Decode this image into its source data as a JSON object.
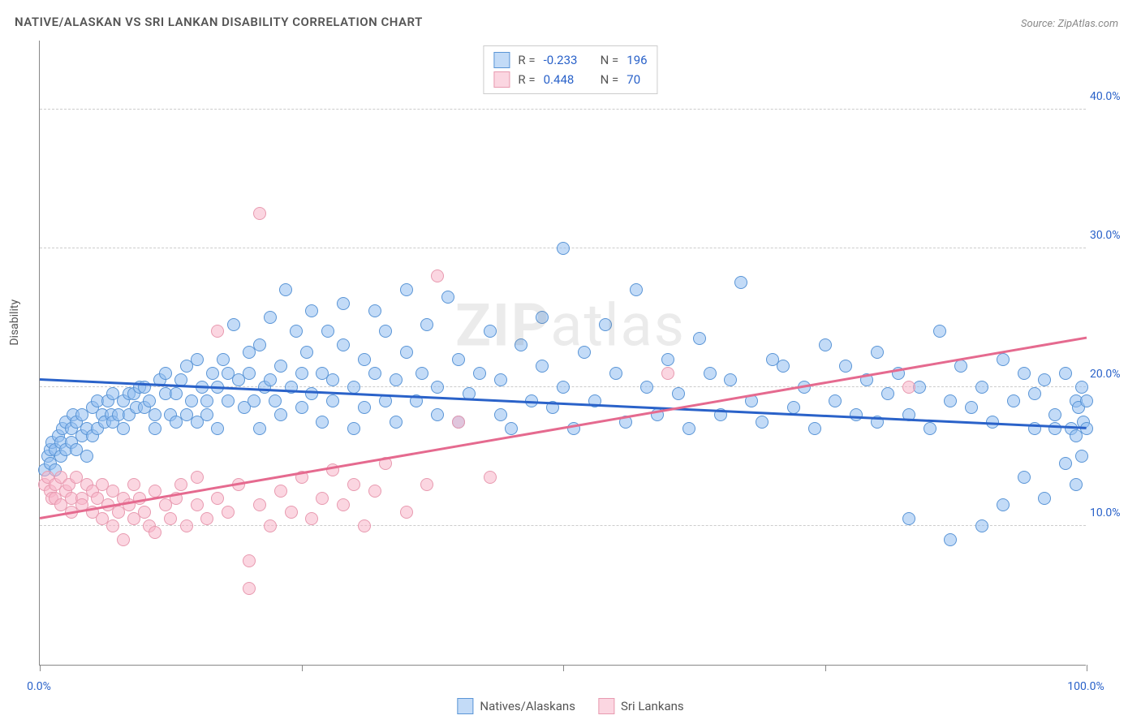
{
  "title": "NATIVE/ALASKAN VS SRI LANKAN DISABILITY CORRELATION CHART",
  "source_label": "Source: ",
  "source_name": "ZipAtlas.com",
  "watermark": {
    "bold": "ZIP",
    "rest": "atlas"
  },
  "chart": {
    "type": "scatter",
    "background_color": "#ffffff",
    "grid_color": "#cccccc",
    "axis_color": "#888888",
    "text_color": "#555555",
    "ytick_color": "#2a62c9",
    "xtick_color": "#2a62c9",
    "yaxis_label": "Disability",
    "xlim": [
      0,
      100
    ],
    "ylim": [
      0,
      45
    ],
    "yticks": [
      10,
      20,
      30,
      40
    ],
    "ytick_labels": [
      "10.0%",
      "20.0%",
      "30.0%",
      "40.0%"
    ],
    "xticks": [
      0,
      25,
      50,
      75,
      100
    ],
    "xtick_labels_visible": {
      "0": "0.0%",
      "100": "100.0%"
    },
    "marker_radius": 8,
    "marker_border_width": 1.2,
    "series": [
      {
        "name": "Natives/Alaskans",
        "fill": "rgba(145,190,240,0.55)",
        "stroke": "#5a95d6",
        "trend_color": "#2a62c9",
        "trend": {
          "x1": 0,
          "y1": 20.5,
          "x2": 100,
          "y2": 17.0
        },
        "R_label": "R = ",
        "R": "-0.233",
        "N_label": "N = ",
        "N": "196",
        "points": [
          [
            0.5,
            14
          ],
          [
            0.8,
            15
          ],
          [
            1,
            15.5
          ],
          [
            1,
            14.5
          ],
          [
            1.2,
            16
          ],
          [
            1.5,
            14
          ],
          [
            1.5,
            15.5
          ],
          [
            1.8,
            16.5
          ],
          [
            2,
            15
          ],
          [
            2,
            16
          ],
          [
            2.2,
            17
          ],
          [
            2.5,
            15.5
          ],
          [
            2.5,
            17.5
          ],
          [
            3,
            17
          ],
          [
            3,
            16
          ],
          [
            3.2,
            18
          ],
          [
            3.5,
            15.5
          ],
          [
            3.5,
            17.5
          ],
          [
            4,
            16.5
          ],
          [
            4,
            18
          ],
          [
            4.5,
            17
          ],
          [
            4.5,
            15
          ],
          [
            5,
            18.5
          ],
          [
            5,
            16.5
          ],
          [
            5.5,
            17
          ],
          [
            5.5,
            19
          ],
          [
            6,
            18
          ],
          [
            6.2,
            17.5
          ],
          [
            6.5,
            19
          ],
          [
            6.8,
            18
          ],
          [
            7,
            17.5
          ],
          [
            7,
            19.5
          ],
          [
            7.5,
            18
          ],
          [
            8,
            19
          ],
          [
            8,
            17
          ],
          [
            8.5,
            19.5
          ],
          [
            8.5,
            18
          ],
          [
            9,
            19.5
          ],
          [
            9.2,
            18.5
          ],
          [
            9.5,
            20
          ],
          [
            10,
            18.5
          ],
          [
            10,
            20
          ],
          [
            10.5,
            19
          ],
          [
            11,
            18
          ],
          [
            11,
            17
          ],
          [
            11.5,
            20.5
          ],
          [
            12,
            19.5
          ],
          [
            12,
            21
          ],
          [
            12.5,
            18
          ],
          [
            13,
            17.5
          ],
          [
            13,
            19.5
          ],
          [
            13.5,
            20.5
          ],
          [
            14,
            18
          ],
          [
            14,
            21.5
          ],
          [
            14.5,
            19
          ],
          [
            15,
            17.5
          ],
          [
            15,
            22
          ],
          [
            15.5,
            20
          ],
          [
            16,
            19
          ],
          [
            16,
            18
          ],
          [
            16.5,
            21
          ],
          [
            17,
            17
          ],
          [
            17,
            20
          ],
          [
            17.5,
            22
          ],
          [
            18,
            19
          ],
          [
            18,
            21
          ],
          [
            18.5,
            24.5
          ],
          [
            19,
            20.5
          ],
          [
            19.5,
            18.5
          ],
          [
            20,
            22.5
          ],
          [
            20,
            21
          ],
          [
            20.5,
            19
          ],
          [
            21,
            17
          ],
          [
            21,
            23
          ],
          [
            21.5,
            20
          ],
          [
            22,
            25
          ],
          [
            22,
            20.5
          ],
          [
            22.5,
            19
          ],
          [
            23,
            18
          ],
          [
            23,
            21.5
          ],
          [
            23.5,
            27
          ],
          [
            24,
            20
          ],
          [
            24.5,
            24
          ],
          [
            25,
            18.5
          ],
          [
            25,
            21
          ],
          [
            25.5,
            22.5
          ],
          [
            26,
            19.5
          ],
          [
            26,
            25.5
          ],
          [
            27,
            17.5
          ],
          [
            27,
            21
          ],
          [
            27.5,
            24
          ],
          [
            28,
            19
          ],
          [
            28,
            20.5
          ],
          [
            29,
            26
          ],
          [
            29,
            23
          ],
          [
            30,
            17
          ],
          [
            30,
            20
          ],
          [
            31,
            18.5
          ],
          [
            31,
            22
          ],
          [
            32,
            25.5
          ],
          [
            32,
            21
          ],
          [
            33,
            19
          ],
          [
            33,
            24
          ],
          [
            34,
            17.5
          ],
          [
            34,
            20.5
          ],
          [
            35,
            27
          ],
          [
            35,
            22.5
          ],
          [
            36,
            19
          ],
          [
            36.5,
            21
          ],
          [
            37,
            24.5
          ],
          [
            38,
            18
          ],
          [
            38,
            20
          ],
          [
            39,
            26.5
          ],
          [
            40,
            17.5
          ],
          [
            40,
            22
          ],
          [
            41,
            19.5
          ],
          [
            42,
            21
          ],
          [
            43,
            24
          ],
          [
            44,
            18
          ],
          [
            44,
            20.5
          ],
          [
            45,
            17
          ],
          [
            46,
            23
          ],
          [
            47,
            19
          ],
          [
            48,
            25
          ],
          [
            48,
            21.5
          ],
          [
            49,
            18.5
          ],
          [
            50,
            20
          ],
          [
            50,
            30
          ],
          [
            51,
            17
          ],
          [
            52,
            22.5
          ],
          [
            53,
            19
          ],
          [
            54,
            24.5
          ],
          [
            55,
            21
          ],
          [
            56,
            17.5
          ],
          [
            57,
            27
          ],
          [
            58,
            20
          ],
          [
            59,
            18
          ],
          [
            60,
            22
          ],
          [
            61,
            19.5
          ],
          [
            62,
            17
          ],
          [
            63,
            23.5
          ],
          [
            64,
            21
          ],
          [
            65,
            18
          ],
          [
            66,
            20.5
          ],
          [
            67,
            27.5
          ],
          [
            68,
            19
          ],
          [
            69,
            17.5
          ],
          [
            70,
            22
          ],
          [
            71,
            21.5
          ],
          [
            72,
            18.5
          ],
          [
            73,
            20
          ],
          [
            74,
            17
          ],
          [
            75,
            23
          ],
          [
            76,
            19
          ],
          [
            77,
            21.5
          ],
          [
            78,
            18
          ],
          [
            79,
            20.5
          ],
          [
            80,
            17.5
          ],
          [
            80,
            22.5
          ],
          [
            81,
            19.5
          ],
          [
            82,
            21
          ],
          [
            83,
            18
          ],
          [
            83,
            10.5
          ],
          [
            84,
            20
          ],
          [
            85,
            17
          ],
          [
            86,
            24
          ],
          [
            87,
            19
          ],
          [
            87,
            9
          ],
          [
            88,
            21.5
          ],
          [
            89,
            18.5
          ],
          [
            90,
            20
          ],
          [
            90,
            10
          ],
          [
            91,
            17.5
          ],
          [
            92,
            22
          ],
          [
            92,
            11.5
          ],
          [
            93,
            19
          ],
          [
            94,
            21
          ],
          [
            94,
            13.5
          ],
          [
            95,
            17
          ],
          [
            95,
            19.5
          ],
          [
            96,
            20.5
          ],
          [
            96,
            12
          ],
          [
            97,
            18
          ],
          [
            97,
            17
          ],
          [
            98,
            21
          ],
          [
            98,
            14.5
          ],
          [
            98.5,
            17
          ],
          [
            99,
            19
          ],
          [
            99,
            13
          ],
          [
            99,
            16.5
          ],
          [
            99.2,
            18.5
          ],
          [
            99.5,
            20
          ],
          [
            99.5,
            15
          ],
          [
            99.7,
            17.5
          ],
          [
            100,
            19
          ],
          [
            100,
            17
          ]
        ]
      },
      {
        "name": "Sri Lankans",
        "fill": "rgba(248,180,200,0.55)",
        "stroke": "#e89ab0",
        "trend_color": "#e56a8f",
        "trend": {
          "x1": 0,
          "y1": 10.5,
          "x2": 100,
          "y2": 23.5
        },
        "R_label": "R = ",
        "R": "0.448",
        "N_label": "N = ",
        "N": "70",
        "points": [
          [
            0.5,
            13
          ],
          [
            0.8,
            13.5
          ],
          [
            1,
            12.5
          ],
          [
            1.2,
            12
          ],
          [
            1.5,
            13
          ],
          [
            1.5,
            12
          ],
          [
            2,
            13.5
          ],
          [
            2,
            11.5
          ],
          [
            2.5,
            12.5
          ],
          [
            2.8,
            13
          ],
          [
            3,
            12
          ],
          [
            3,
            11
          ],
          [
            3.5,
            13.5
          ],
          [
            4,
            12
          ],
          [
            4,
            11.5
          ],
          [
            4.5,
            13
          ],
          [
            5,
            12.5
          ],
          [
            5,
            11
          ],
          [
            5.5,
            12
          ],
          [
            6,
            10.5
          ],
          [
            6,
            13
          ],
          [
            6.5,
            11.5
          ],
          [
            7,
            12.5
          ],
          [
            7,
            10
          ],
          [
            7.5,
            11
          ],
          [
            8,
            12
          ],
          [
            8,
            9
          ],
          [
            8.5,
            11.5
          ],
          [
            9,
            10.5
          ],
          [
            9,
            13
          ],
          [
            9.5,
            12
          ],
          [
            10,
            11
          ],
          [
            10.5,
            10
          ],
          [
            11,
            12.5
          ],
          [
            11,
            9.5
          ],
          [
            12,
            11.5
          ],
          [
            12.5,
            10.5
          ],
          [
            13,
            12
          ],
          [
            13.5,
            13
          ],
          [
            14,
            10
          ],
          [
            15,
            11.5
          ],
          [
            15,
            13.5
          ],
          [
            16,
            10.5
          ],
          [
            17,
            12
          ],
          [
            17,
            24
          ],
          [
            18,
            11
          ],
          [
            19,
            13
          ],
          [
            20,
            5.5
          ],
          [
            20,
            7.5
          ],
          [
            21,
            11.5
          ],
          [
            21,
            32.5
          ],
          [
            22,
            10
          ],
          [
            23,
            12.5
          ],
          [
            24,
            11
          ],
          [
            25,
            13.5
          ],
          [
            26,
            10.5
          ],
          [
            27,
            12
          ],
          [
            28,
            14
          ],
          [
            29,
            11.5
          ],
          [
            30,
            13
          ],
          [
            31,
            10
          ],
          [
            32,
            12.5
          ],
          [
            33,
            14.5
          ],
          [
            35,
            11
          ],
          [
            37,
            13
          ],
          [
            38,
            28
          ],
          [
            40,
            17.5
          ],
          [
            43,
            13.5
          ],
          [
            60,
            21
          ],
          [
            83,
            20
          ]
        ]
      }
    ]
  },
  "legend_bottom": [
    {
      "label": "Natives/Alaskans",
      "series_idx": 0
    },
    {
      "label": "Sri Lankans",
      "series_idx": 1
    }
  ]
}
